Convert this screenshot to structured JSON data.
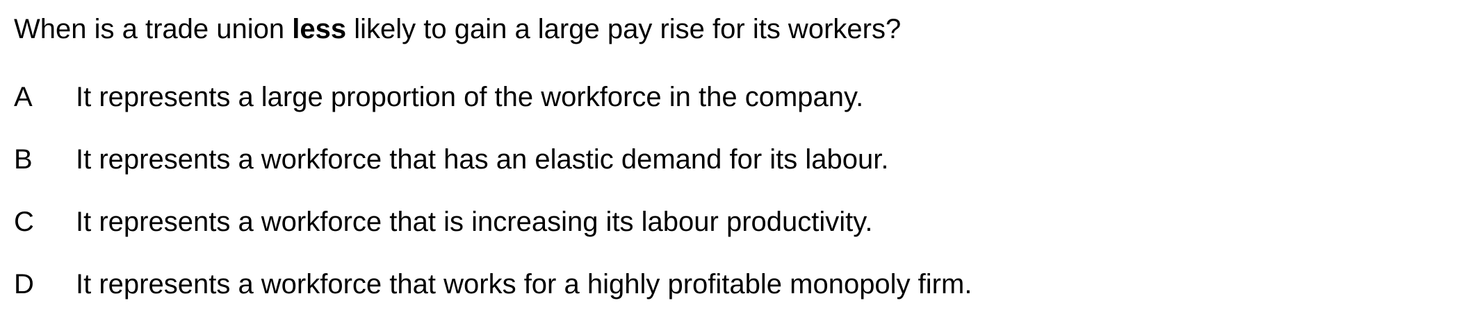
{
  "question": {
    "before": "When is a trade union ",
    "emphasis": "less",
    "after": " likely to gain a large pay rise for its workers?"
  },
  "options": [
    {
      "letter": "A",
      "text": "It represents a large proportion of the workforce in the company."
    },
    {
      "letter": "B",
      "text": "It represents a workforce that has an elastic demand for its labour."
    },
    {
      "letter": "C",
      "text": "It represents a workforce that is increasing its labour productivity."
    },
    {
      "letter": "D",
      "text": "It represents a workforce that works for a highly profitable monopoly firm."
    }
  ]
}
